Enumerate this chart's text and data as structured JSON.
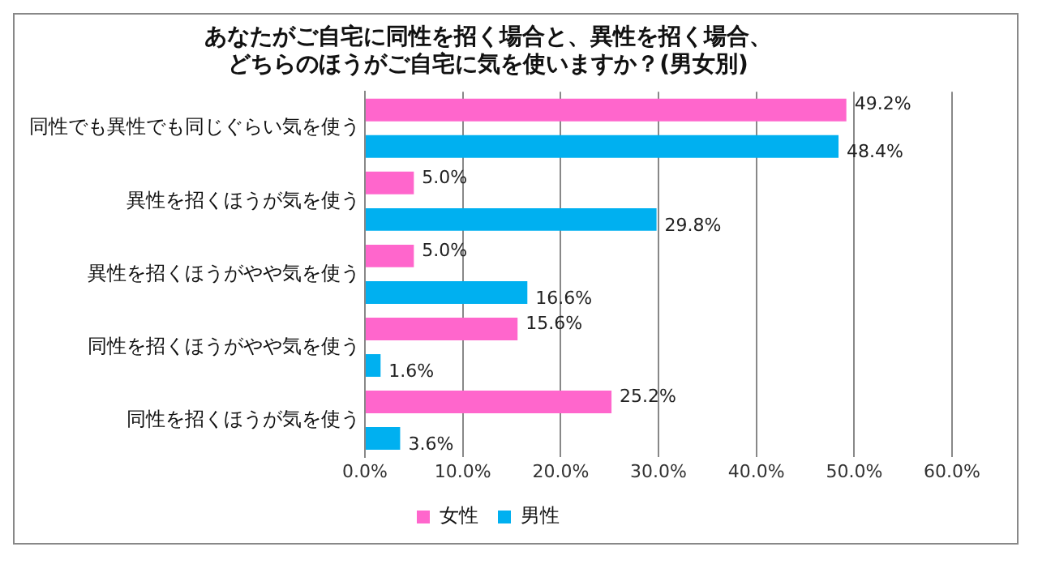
{
  "chart_data": {
    "type": "bar",
    "orientation": "horizontal",
    "title": "あなたがご自宅に同性を招く場合と、異性を招く場合、どちらのほうがご自宅に気を使いますか？(男女別)",
    "categories": [
      "同性でも異性でも同じぐらい気を使う",
      "異性を招くほうが気を使う",
      "異性を招くほうがやや気を使う",
      "同性を招くほうがやや気を使う",
      "同性を招くほうが気を使う"
    ],
    "series": [
      {
        "name": "女性",
        "color": "#ff66cc",
        "values": [
          49.2,
          5.0,
          5.0,
          15.6,
          25.2
        ],
        "value_labels": [
          "49.2%",
          "5.0%",
          "5.0%",
          "15.6%",
          "25.2%"
        ]
      },
      {
        "name": "男性",
        "color": "#00b0f0",
        "values": [
          48.4,
          29.8,
          16.6,
          1.6,
          3.6
        ],
        "value_labels": [
          "48.4%",
          "29.8%",
          "16.6%",
          "1.6%",
          "3.6%"
        ]
      }
    ],
    "xlim": [
      0,
      60
    ],
    "xticks": [
      {
        "value": 0,
        "label": "0.0%"
      },
      {
        "value": 10,
        "label": "10.0%"
      },
      {
        "value": 20,
        "label": "20.0%"
      },
      {
        "value": 30,
        "label": "30.0%"
      },
      {
        "value": 40,
        "label": "40.0%"
      },
      {
        "value": 50,
        "label": "50.0%"
      },
      {
        "value": 60,
        "label": "60.0%"
      }
    ],
    "grid": "x",
    "legend": "bottom"
  }
}
